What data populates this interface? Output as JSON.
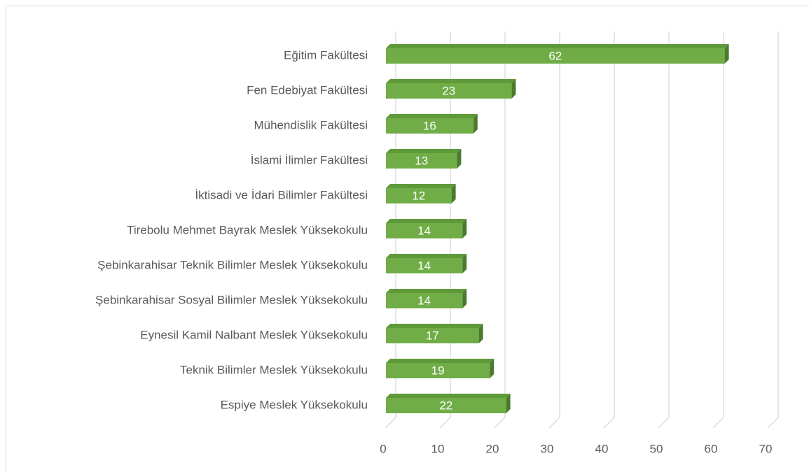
{
  "chart_data": {
    "type": "bar3d",
    "orientation": "horizontal",
    "categories": [
      "Eğitim Fakültesi",
      "Fen Edebiyat Fakültesi",
      "Mühendislik Fakültesi",
      "İslami İlimler Fakültesi",
      "İktisadi ve İdari Bilimler Fakültesi",
      "Tirebolu Mehmet Bayrak Meslek Yüksekokulu",
      "Şebinkarahisar Teknik Bilimler Meslek Yüksekokulu",
      "Şebinkarahisar Sosyal Bilimler Meslek Yüksekokulu",
      "Eynesil Kamil Nalbant Meslek Yüksekokulu",
      "Teknik Bilimler Meslek Yüksekokulu",
      "Espiye Meslek Yüksekokulu"
    ],
    "values": [
      62,
      23,
      16,
      13,
      12,
      14,
      14,
      14,
      17,
      19,
      22
    ],
    "color": "#70ad47",
    "xlim": [
      0,
      70
    ],
    "xticks": [
      0,
      10,
      20,
      30,
      40,
      50,
      60,
      70
    ],
    "grid": true
  }
}
